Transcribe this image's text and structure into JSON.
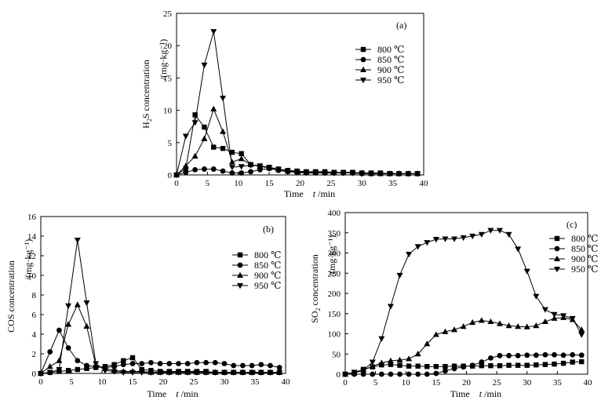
{
  "chart_data": [
    {
      "panel_label": "(a)",
      "type": "line",
      "xlabel_prefix": "Time",
      "xlabel_var": "t",
      "xlabel_unit": "/min",
      "ylabel_pre": "H",
      "ylabel_sub": "2",
      "ylabel_post": "S concentration",
      "ylabel_unit": "/(mg·kg⁻¹)",
      "xlim": [
        0,
        40
      ],
      "ylim": [
        0,
        25
      ],
      "xticks": [
        0,
        5,
        10,
        15,
        20,
        25,
        30,
        35,
        40
      ],
      "yticks": [
        0,
        5,
        10,
        15,
        20,
        25
      ],
      "grid": false,
      "legend_position": "right",
      "series": [
        {
          "name": "800 ℃",
          "marker": "square",
          "x": [
            0,
            1.5,
            3,
            4.5,
            6,
            7.5,
            9,
            10.5,
            12,
            13.5,
            15,
            16.5,
            18,
            19.5,
            21,
            22.5,
            24,
            25.5,
            27,
            28.5,
            30,
            31.5,
            33,
            34.5,
            36,
            37.5,
            39
          ],
          "y": [
            0,
            1.0,
            9.3,
            7.4,
            4.3,
            4.1,
            3.5,
            3.3,
            1.6,
            1.4,
            1.1,
            0.9,
            0.7,
            0.6,
            0.5,
            0.5,
            0.5,
            0.4,
            0.4,
            0.4,
            0.3,
            0.3,
            0.3,
            0.2,
            0.2,
            0.2,
            0.2
          ]
        },
        {
          "name": "850 ℃",
          "marker": "circle",
          "x": [
            0,
            1.5,
            3,
            4.5,
            6,
            7.5,
            9,
            10.5,
            12,
            13.5,
            15,
            16.5,
            18,
            19.5,
            21,
            22.5,
            24,
            25.5,
            27,
            28.5,
            30,
            31.5,
            33,
            34.5,
            36,
            37.5,
            39
          ],
          "y": [
            0,
            0.4,
            0.8,
            0.9,
            0.9,
            0.6,
            0.3,
            0.3,
            0.5,
            0.8,
            1.0,
            0.7,
            0.5,
            0.4,
            0.3,
            0.3,
            0.3,
            0.3,
            0.3,
            0.3,
            0.2,
            0.2,
            0.2,
            0.2,
            0.2,
            0.2,
            0.2
          ]
        },
        {
          "name": "900 ℃",
          "marker": "triangle-up",
          "x": [
            0,
            1.5,
            3,
            4.5,
            6,
            7.5,
            9,
            10.5,
            12,
            13.5,
            15,
            16.5,
            18,
            19.5,
            21,
            22.5,
            24,
            25.5,
            27,
            28.5,
            30,
            31.5,
            33,
            34.5,
            36,
            37.5,
            39
          ],
          "y": [
            0,
            1.4,
            2.9,
            5.6,
            10.2,
            6.7,
            2.0,
            2.5,
            1.6,
            1.3,
            1.1,
            0.9,
            0.6,
            0.5,
            0.4,
            0.4,
            0.4,
            0.3,
            0.3,
            0.3,
            0.3,
            0.2,
            0.2,
            0.2,
            0.2,
            0.2,
            0.2
          ]
        },
        {
          "name": "950 ℃",
          "marker": "triangle-down",
          "x": [
            0,
            1.5,
            3,
            4.5,
            6,
            7.5,
            9,
            10.5,
            12,
            13.5,
            15,
            16.5,
            18,
            19.5,
            21,
            22.5,
            24,
            25.5,
            27,
            28.5,
            30,
            31.5,
            33,
            34.5,
            36,
            37.5,
            39
          ],
          "y": [
            0,
            6.0,
            8.1,
            17.0,
            22.2,
            11.9,
            1.2,
            1.3,
            1.5,
            1.4,
            1.2,
            0.9,
            0.6,
            0.5,
            0.4,
            0.4,
            0.3,
            0.3,
            0.3,
            0.3,
            0.2,
            0.2,
            0.2,
            0.2,
            0.2,
            0.2,
            0.2
          ]
        }
      ]
    },
    {
      "panel_label": "(b)",
      "type": "line",
      "xlabel_prefix": "Time",
      "xlabel_var": "t",
      "xlabel_unit": "/min",
      "ylabel_pre": "COS concentration",
      "ylabel_sub": "",
      "ylabel_post": "",
      "ylabel_unit": "/(mg·kg⁻¹)",
      "xlim": [
        0,
        40
      ],
      "ylim": [
        0,
        16
      ],
      "xticks": [
        0,
        5,
        10,
        15,
        20,
        25,
        30,
        35,
        40
      ],
      "yticks": [
        0,
        2,
        4,
        6,
        8,
        10,
        12,
        14,
        16
      ],
      "grid": false,
      "legend_position": "right",
      "series": [
        {
          "name": "800 ℃",
          "marker": "square",
          "x": [
            0,
            1.5,
            3,
            4.5,
            6,
            7.5,
            9,
            10.5,
            12,
            13.5,
            15,
            16.5,
            18,
            19.5,
            21,
            22.5,
            24,
            25.5,
            27,
            28.5,
            30,
            31.5,
            33,
            34.5,
            36,
            37.5,
            39
          ],
          "y": [
            0,
            0.1,
            0.2,
            0.3,
            0.4,
            0.5,
            0.6,
            0.7,
            0.9,
            1.3,
            1.6,
            0.4,
            0.3,
            0.2,
            0.2,
            0.2,
            0.2,
            0.2,
            0.2,
            0.1,
            0.1,
            0.1,
            0.1,
            0.1,
            0.1,
            0.1,
            0.1
          ]
        },
        {
          "name": "850 ℃",
          "marker": "circle",
          "x": [
            0,
            1.5,
            3,
            4.5,
            6,
            7.5,
            9,
            10.5,
            12,
            13.5,
            15,
            16.5,
            18,
            19.5,
            21,
            22.5,
            24,
            25.5,
            27,
            28.5,
            30,
            31.5,
            33,
            34.5,
            36,
            37.5,
            39
          ],
          "y": [
            0,
            2.2,
            4.4,
            2.6,
            1.3,
            0.8,
            0.7,
            0.6,
            0.7,
            0.9,
            1.0,
            1.0,
            1.1,
            1.0,
            1.0,
            1.0,
            1.0,
            1.1,
            1.1,
            1.1,
            1.0,
            0.8,
            0.8,
            0.8,
            0.9,
            0.8,
            0.6
          ]
        },
        {
          "name": "900 ℃",
          "marker": "triangle-up",
          "x": [
            0,
            1.5,
            3,
            4.5,
            6,
            7.5,
            9,
            10.5,
            12,
            13.5,
            15,
            16.5,
            18,
            19.5,
            21,
            22.5,
            24,
            25.5,
            27,
            28.5,
            30,
            31.5,
            33,
            34.5,
            36,
            37.5,
            39
          ],
          "y": [
            0,
            0.7,
            1.3,
            5.0,
            7.0,
            4.8,
            0.8,
            0.5,
            0.3,
            0.2,
            0.2,
            0.2,
            0.1,
            0.1,
            0.1,
            0.1,
            0.1,
            0.1,
            0.1,
            0.1,
            0.1,
            0.1,
            0.1,
            0.1,
            0.1,
            0.1,
            0.1
          ]
        },
        {
          "name": "950 ℃",
          "marker": "triangle-down",
          "x": [
            0,
            1.5,
            3,
            4.5,
            6,
            7.5,
            9,
            10.5,
            12,
            13.5,
            15,
            16.5,
            18,
            19.5,
            21,
            22.5,
            24,
            25.5,
            27,
            28.5,
            30,
            31.5,
            33,
            34.5,
            36,
            37.5,
            39
          ],
          "y": [
            0,
            0.1,
            0.4,
            6.9,
            13.6,
            7.2,
            1.0,
            0.3,
            0.2,
            0.1,
            0.1,
            0.1,
            0.1,
            0.1,
            0.1,
            0.1,
            0.1,
            0.1,
            0.1,
            0.1,
            0.1,
            0.1,
            0.1,
            0.1,
            0.1,
            0.1,
            0.1
          ]
        }
      ]
    },
    {
      "panel_label": "(c)",
      "type": "line",
      "xlabel_prefix": "Time",
      "xlabel_var": "t",
      "xlabel_unit": "/min",
      "ylabel_pre": "SO",
      "ylabel_sub": "2",
      "ylabel_post": " concentration",
      "ylabel_unit": "/(mg·kg⁻¹)",
      "xlim": [
        0,
        40
      ],
      "ylim": [
        0,
        400
      ],
      "xticks": [
        0,
        5,
        10,
        15,
        20,
        25,
        30,
        35,
        40
      ],
      "yticks": [
        0,
        50,
        100,
        150,
        200,
        250,
        300,
        350,
        400
      ],
      "grid": false,
      "legend_position": "right",
      "series": [
        {
          "name": "800 ℃",
          "marker": "square",
          "x": [
            0,
            1.5,
            3,
            4.5,
            6,
            7.5,
            9,
            10.5,
            12,
            13.5,
            15,
            16.5,
            18,
            19.5,
            21,
            22.5,
            24,
            25.5,
            27,
            28.5,
            30,
            31.5,
            33,
            34.5,
            36,
            37.5,
            39
          ],
          "y": [
            0,
            4,
            12,
            18,
            23,
            24,
            22,
            20,
            20,
            19,
            19,
            19,
            20,
            20,
            20,
            21,
            21,
            21,
            22,
            22,
            22,
            23,
            24,
            25,
            27,
            30,
            31
          ]
        },
        {
          "name": "850 ℃",
          "marker": "circle",
          "x": [
            0,
            1.5,
            3,
            4.5,
            6,
            7.5,
            9,
            10.5,
            12,
            13.5,
            15,
            16.5,
            18,
            19.5,
            21,
            22.5,
            24,
            25.5,
            27,
            28.5,
            30,
            31.5,
            33,
            34.5,
            36,
            37.5,
            39
          ],
          "y": [
            0,
            0,
            0,
            0,
            0,
            0,
            0,
            0,
            0,
            0,
            2,
            8,
            14,
            18,
            22,
            30,
            40,
            46,
            46,
            46,
            47,
            47,
            48,
            48,
            47,
            48,
            47
          ]
        },
        {
          "name": "900 ℃",
          "marker": "triangle-up",
          "x": [
            0,
            1.5,
            3,
            4.5,
            6,
            7.5,
            9,
            10.5,
            12,
            13.5,
            15,
            16.5,
            18,
            19.5,
            21,
            22.5,
            24,
            25.5,
            27,
            28.5,
            30,
            31.5,
            33,
            34.5,
            36,
            37.5,
            39
          ],
          "y": [
            0,
            3,
            10,
            20,
            28,
            33,
            35,
            38,
            50,
            75,
            98,
            105,
            110,
            118,
            128,
            133,
            130,
            125,
            120,
            118,
            117,
            120,
            130,
            138,
            140,
            135,
            110
          ]
        },
        {
          "name": "950 ℃",
          "marker": "triangle-down",
          "x": [
            0,
            1.5,
            3,
            4.5,
            6,
            7.5,
            9,
            10.5,
            12,
            13.5,
            15,
            16.5,
            18,
            19.5,
            21,
            22.5,
            24,
            25.5,
            27,
            28.5,
            30,
            31.5,
            33,
            34.5,
            36,
            37.5,
            39
          ],
          "y": [
            0,
            5,
            10,
            30,
            88,
            168,
            245,
            297,
            316,
            326,
            334,
            335,
            335,
            338,
            342,
            346,
            356,
            356,
            346,
            310,
            255,
            193,
            160,
            148,
            145,
            138,
            98
          ]
        }
      ]
    }
  ]
}
